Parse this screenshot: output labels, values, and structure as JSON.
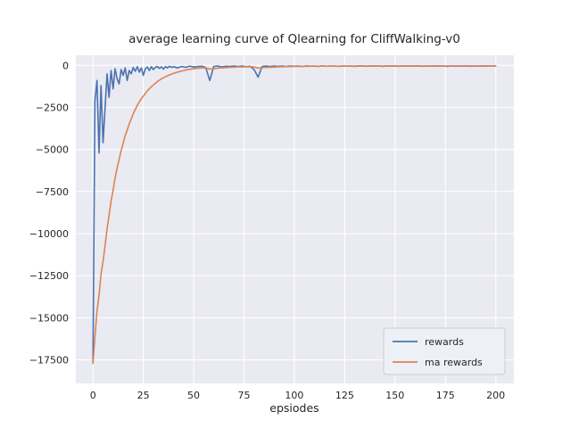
{
  "figure": {
    "title": "average learning curve of Qlearning for CliffWalking-v0",
    "xlabel": "epsiodes"
  },
  "chart_data": {
    "type": "line",
    "title": "average learning curve of Qlearning for CliffWalking-v0",
    "xlabel": "epsiodes",
    "ylabel": "",
    "grid": true,
    "legend_position": "lower right",
    "background_color": "#eaeaf2",
    "grid_color": "#ffffff",
    "xlim": [
      -8.5,
      209
    ],
    "ylim": [
      -18900,
      600
    ],
    "xticks": [
      0,
      25,
      50,
      75,
      100,
      125,
      150,
      175,
      200
    ],
    "yticks": [
      0,
      -2500,
      -5000,
      -7500,
      -10000,
      -12500,
      -15000,
      -17500
    ],
    "legend": {
      "items": [
        "rewards",
        "ma rewards"
      ]
    },
    "series": [
      {
        "name": "rewards",
        "color": "#4c72b0",
        "x": [
          0,
          1,
          2,
          3,
          4,
          5,
          6,
          7,
          8,
          9,
          10,
          11,
          12,
          13,
          14,
          15,
          16,
          17,
          18,
          19,
          20,
          21,
          22,
          23,
          24,
          25,
          26,
          27,
          28,
          29,
          30,
          31,
          32,
          33,
          34,
          35,
          36,
          37,
          38,
          39,
          40,
          42,
          44,
          46,
          48,
          50,
          52,
          54,
          56,
          58,
          60,
          62,
          64,
          66,
          68,
          70,
          72,
          74,
          76,
          78,
          80,
          82,
          84,
          86,
          88,
          90,
          92,
          94,
          96,
          98,
          100,
          102,
          104,
          106,
          108,
          110,
          112,
          114,
          116,
          118,
          120,
          122,
          124,
          126,
          128,
          130,
          132,
          134,
          136,
          138,
          140,
          142,
          144,
          146,
          148,
          150,
          152,
          154,
          156,
          158,
          160,
          162,
          164,
          166,
          168,
          170,
          172,
          174,
          176,
          178,
          180,
          182,
          184,
          186,
          188,
          190,
          192,
          194,
          196,
          198,
          200
        ],
        "y": [
          -17700,
          -2100,
          -900,
          -5200,
          -1200,
          -4600,
          -2600,
          -500,
          -1900,
          -300,
          -1400,
          -200,
          -800,
          -1100,
          -250,
          -600,
          -150,
          -900,
          -300,
          -500,
          -120,
          -350,
          -80,
          -400,
          -150,
          -600,
          -200,
          -100,
          -300,
          -80,
          -250,
          -120,
          -60,
          -180,
          -90,
          -220,
          -70,
          -150,
          -50,
          -120,
          -80,
          -150,
          -60,
          -120,
          -40,
          -100,
          -70,
          -50,
          -130,
          -900,
          -60,
          -40,
          -90,
          -50,
          -70,
          -40,
          -60,
          -35,
          -80,
          -50,
          -250,
          -700,
          -60,
          -40,
          -70,
          -35,
          -55,
          -40,
          -60,
          -30,
          -50,
          -40,
          -60,
          -30,
          -45,
          -35,
          -55,
          -30,
          -50,
          -40,
          -35,
          -60,
          -30,
          -45,
          -35,
          -55,
          -30,
          -40,
          -50,
          -30,
          -45,
          -35,
          -55,
          -30,
          -40,
          -35,
          -50,
          -30,
          -45,
          -35,
          -40,
          -30,
          -50,
          -35,
          -45,
          -30,
          -40,
          -35,
          -55,
          -30,
          -45,
          -35,
          -40,
          -30,
          -50,
          -35,
          -45,
          -30,
          -40,
          -35,
          -30
        ]
      },
      {
        "name": "ma rewards",
        "color": "#dd8452",
        "x": [
          0,
          1,
          2,
          3,
          4,
          5,
          6,
          7,
          8,
          9,
          10,
          11,
          12,
          13,
          14,
          15,
          16,
          17,
          18,
          19,
          20,
          21,
          22,
          23,
          24,
          25,
          26,
          27,
          28,
          29,
          30,
          31,
          32,
          33,
          34,
          35,
          36,
          37,
          38,
          39,
          40,
          42,
          44,
          46,
          48,
          50,
          52,
          54,
          56,
          58,
          60,
          62,
          64,
          66,
          68,
          70,
          72,
          74,
          76,
          78,
          80,
          82,
          84,
          86,
          88,
          90,
          92,
          94,
          96,
          98,
          100,
          102,
          104,
          106,
          108,
          110,
          112,
          114,
          116,
          118,
          120,
          122,
          124,
          126,
          128,
          130,
          132,
          134,
          136,
          138,
          140,
          142,
          144,
          146,
          148,
          150,
          152,
          154,
          156,
          158,
          160,
          162,
          164,
          166,
          168,
          170,
          172,
          174,
          176,
          178,
          180,
          182,
          184,
          186,
          188,
          190,
          192,
          194,
          196,
          198,
          200
        ],
        "y": [
          -17700,
          -16140,
          -14616,
          -13674,
          -12427,
          -11644,
          -10740,
          -9716,
          -8934,
          -8071,
          -7404,
          -6684,
          -6096,
          -5596,
          -5061,
          -4615,
          -4168,
          -3841,
          -3487,
          -3188,
          -2881,
          -2628,
          -2373,
          -2176,
          -1973,
          -1836,
          -1672,
          -1515,
          -1394,
          -1263,
          -1162,
          -1058,
          -958,
          -880,
          -801,
          -743,
          -676,
          -623,
          -566,
          -521,
          -477,
          -400,
          -330,
          -280,
          -230,
          -200,
          -175,
          -155,
          -140,
          -220,
          -190,
          -165,
          -145,
          -130,
          -115,
          -105,
          -95,
          -90,
          -85,
          -80,
          -95,
          -160,
          -140,
          -122,
          -108,
          -98,
          -88,
          -80,
          -75,
          -68,
          -63,
          -60,
          -57,
          -54,
          -52,
          -50,
          -49,
          -48,
          -47,
          -46,
          -45,
          -46,
          -44,
          -44,
          -43,
          -43,
          -42,
          -42,
          -42,
          -41,
          -41,
          -41,
          -41,
          -40,
          -40,
          -40,
          -40,
          -39,
          -40,
          -39,
          -39,
          -38,
          -39,
          -38,
          -39,
          -38,
          -38,
          -38,
          -39,
          -38,
          -38,
          -38,
          -38,
          -37,
          -38,
          -37,
          -38,
          -37,
          -37,
          -37,
          -37
        ]
      }
    ]
  }
}
